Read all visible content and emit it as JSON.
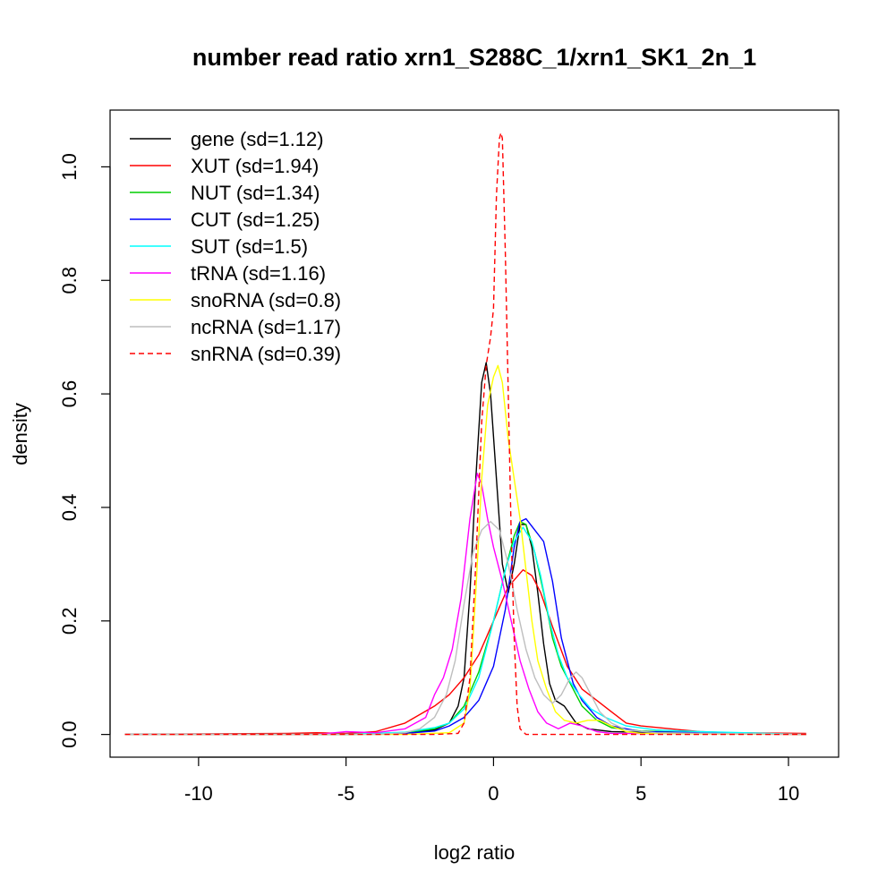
{
  "chart_data": {
    "type": "line",
    "title": "number read ratio xrn1_S288C_1/xrn1_SK1_2n_1",
    "xlabel": "log2 ratio",
    "ylabel": "density",
    "xlim": [
      -13,
      11.7
    ],
    "ylim": [
      -0.04,
      1.1
    ],
    "x_ticks": [
      -10,
      -5,
      0,
      5,
      10
    ],
    "x_tick_labels": [
      "-10",
      "-5",
      "0",
      "5",
      "10"
    ],
    "y_ticks": [
      0.0,
      0.2,
      0.4,
      0.6,
      0.8,
      1.0
    ],
    "y_tick_labels": [
      "0.0",
      "0.2",
      "0.4",
      "0.6",
      "0.8",
      "1.0"
    ],
    "grid": false,
    "legend_position": "top-left",
    "series": [
      {
        "name": "gene (sd=1.12)",
        "color": "#000000",
        "dash": false,
        "points": [
          [
            -12.5,
            0
          ],
          [
            -5,
            0
          ],
          [
            -3,
            0.002
          ],
          [
            -2,
            0.008
          ],
          [
            -1.5,
            0.02
          ],
          [
            -1.2,
            0.05
          ],
          [
            -1,
            0.1
          ],
          [
            -0.8,
            0.25
          ],
          [
            -0.6,
            0.45
          ],
          [
            -0.4,
            0.62
          ],
          [
            -0.25,
            0.655
          ],
          [
            -0.1,
            0.6
          ],
          [
            0.1,
            0.45
          ],
          [
            0.3,
            0.3
          ],
          [
            0.5,
            0.25
          ],
          [
            0.7,
            0.3
          ],
          [
            0.9,
            0.37
          ],
          [
            1.1,
            0.37
          ],
          [
            1.3,
            0.33
          ],
          [
            1.5,
            0.25
          ],
          [
            1.7,
            0.16
          ],
          [
            1.9,
            0.09
          ],
          [
            2.1,
            0.06
          ],
          [
            2.4,
            0.05
          ],
          [
            2.8,
            0.02
          ],
          [
            3.2,
            0.01
          ],
          [
            4,
            0.005
          ],
          [
            6,
            0.003
          ],
          [
            10.6,
            0
          ]
        ]
      },
      {
        "name": "XUT (sd=1.94)",
        "color": "#ff0000",
        "dash": false,
        "points": [
          [
            -12.5,
            0
          ],
          [
            -7,
            0.002
          ],
          [
            -6,
            0.003
          ],
          [
            -5,
            0.002
          ],
          [
            -4,
            0.005
          ],
          [
            -3,
            0.02
          ],
          [
            -2,
            0.05
          ],
          [
            -1.5,
            0.07
          ],
          [
            -1,
            0.1
          ],
          [
            -0.5,
            0.14
          ],
          [
            0,
            0.2
          ],
          [
            0.5,
            0.26
          ],
          [
            1,
            0.29
          ],
          [
            1.3,
            0.28
          ],
          [
            1.6,
            0.25
          ],
          [
            2,
            0.19
          ],
          [
            2.5,
            0.12
          ],
          [
            3,
            0.08
          ],
          [
            3.5,
            0.06
          ],
          [
            4,
            0.04
          ],
          [
            4.5,
            0.02
          ],
          [
            5,
            0.015
          ],
          [
            6,
            0.01
          ],
          [
            7,
            0.005
          ],
          [
            8,
            0.003
          ],
          [
            10.6,
            0.002
          ]
        ]
      },
      {
        "name": "NUT (sd=1.34)",
        "color": "#00cd00",
        "dash": false,
        "points": [
          [
            -12.5,
            0
          ],
          [
            -5,
            0
          ],
          [
            -3,
            0.003
          ],
          [
            -2,
            0.01
          ],
          [
            -1.5,
            0.02
          ],
          [
            -1,
            0.05
          ],
          [
            -0.5,
            0.11
          ],
          [
            0,
            0.2
          ],
          [
            0.4,
            0.29
          ],
          [
            0.7,
            0.35
          ],
          [
            0.9,
            0.375
          ],
          [
            1.1,
            0.37
          ],
          [
            1.4,
            0.32
          ],
          [
            1.7,
            0.25
          ],
          [
            2,
            0.17
          ],
          [
            2.3,
            0.12
          ],
          [
            2.7,
            0.08
          ],
          [
            3,
            0.05
          ],
          [
            3.5,
            0.025
          ],
          [
            4,
            0.012
          ],
          [
            5,
            0.006
          ],
          [
            7,
            0.003
          ],
          [
            10.6,
            0
          ]
        ]
      },
      {
        "name": "CUT (sd=1.25)",
        "color": "#0000ff",
        "dash": false,
        "points": [
          [
            -12.5,
            0
          ],
          [
            -5,
            0
          ],
          [
            -3,
            0.002
          ],
          [
            -2,
            0.006
          ],
          [
            -1.5,
            0.015
          ],
          [
            -1,
            0.03
          ],
          [
            -0.5,
            0.06
          ],
          [
            0,
            0.12
          ],
          [
            0.4,
            0.22
          ],
          [
            0.7,
            0.33
          ],
          [
            0.9,
            0.375
          ],
          [
            1.1,
            0.38
          ],
          [
            1.4,
            0.36
          ],
          [
            1.7,
            0.34
          ],
          [
            2,
            0.27
          ],
          [
            2.3,
            0.17
          ],
          [
            2.7,
            0.09
          ],
          [
            3,
            0.06
          ],
          [
            3.5,
            0.03
          ],
          [
            4,
            0.015
          ],
          [
            5,
            0.005
          ],
          [
            7,
            0.003
          ],
          [
            10.6,
            0
          ]
        ]
      },
      {
        "name": "SUT (sd=1.5)",
        "color": "#00ffff",
        "dash": false,
        "points": [
          [
            -12.5,
            0
          ],
          [
            -5,
            0
          ],
          [
            -3,
            0.004
          ],
          [
            -2,
            0.012
          ],
          [
            -1.5,
            0.02
          ],
          [
            -1,
            0.045
          ],
          [
            -0.5,
            0.1
          ],
          [
            0,
            0.2
          ],
          [
            0.4,
            0.29
          ],
          [
            0.7,
            0.34
          ],
          [
            1,
            0.365
          ],
          [
            1.3,
            0.34
          ],
          [
            1.6,
            0.28
          ],
          [
            1.9,
            0.2
          ],
          [
            2.2,
            0.14
          ],
          [
            2.5,
            0.1
          ],
          [
            2.9,
            0.07
          ],
          [
            3.3,
            0.045
          ],
          [
            3.8,
            0.03
          ],
          [
            4.5,
            0.015
          ],
          [
            5.5,
            0.008
          ],
          [
            7,
            0.005
          ],
          [
            8.5,
            0.003
          ],
          [
            10.6,
            0
          ]
        ]
      },
      {
        "name": "tRNA (sd=1.16)",
        "color": "#ff00ff",
        "dash": false,
        "points": [
          [
            -12.5,
            0
          ],
          [
            -6,
            0
          ],
          [
            -5,
            0.005
          ],
          [
            -4,
            0.003
          ],
          [
            -3,
            0.01
          ],
          [
            -2.3,
            0.03
          ],
          [
            -2,
            0.07
          ],
          [
            -1.7,
            0.1
          ],
          [
            -1.4,
            0.15
          ],
          [
            -1.1,
            0.24
          ],
          [
            -0.8,
            0.38
          ],
          [
            -0.55,
            0.46
          ],
          [
            -0.4,
            0.44
          ],
          [
            -0.2,
            0.38
          ],
          [
            0,
            0.33
          ],
          [
            0.3,
            0.27
          ],
          [
            0.6,
            0.2
          ],
          [
            0.9,
            0.13
          ],
          [
            1.2,
            0.08
          ],
          [
            1.5,
            0.04
          ],
          [
            1.8,
            0.02
          ],
          [
            2.2,
            0.01
          ],
          [
            2.6,
            0.02
          ],
          [
            3,
            0.015
          ],
          [
            3.5,
            0.005
          ],
          [
            4,
            0.002
          ],
          [
            10.6,
            0
          ]
        ]
      },
      {
        "name": "snoRNA (sd=0.8)",
        "color": "#ffff00",
        "dash": false,
        "points": [
          [
            -12.5,
            0
          ],
          [
            -3,
            0
          ],
          [
            -1.5,
            0.003
          ],
          [
            -1,
            0.02
          ],
          [
            -0.8,
            0.08
          ],
          [
            -0.6,
            0.25
          ],
          [
            -0.4,
            0.45
          ],
          [
            -0.2,
            0.58
          ],
          [
            0,
            0.63
          ],
          [
            0.15,
            0.65
          ],
          [
            0.3,
            0.62
          ],
          [
            0.5,
            0.52
          ],
          [
            0.7,
            0.45
          ],
          [
            0.9,
            0.38
          ],
          [
            1.1,
            0.29
          ],
          [
            1.3,
            0.2
          ],
          [
            1.5,
            0.13
          ],
          [
            1.8,
            0.08
          ],
          [
            2.1,
            0.04
          ],
          [
            2.4,
            0.025
          ],
          [
            2.8,
            0.02
          ],
          [
            3.2,
            0.025
          ],
          [
            3.6,
            0.025
          ],
          [
            4,
            0.015
          ],
          [
            4.5,
            0.005
          ],
          [
            5,
            0.002
          ],
          [
            10.6,
            0
          ]
        ]
      },
      {
        "name": "ncRNA (sd=1.17)",
        "color": "#bebebe",
        "dash": false,
        "points": [
          [
            -12.5,
            0
          ],
          [
            -4,
            0
          ],
          [
            -3,
            0.003
          ],
          [
            -2.5,
            0.01
          ],
          [
            -2,
            0.03
          ],
          [
            -1.6,
            0.07
          ],
          [
            -1.3,
            0.13
          ],
          [
            -1,
            0.23
          ],
          [
            -0.7,
            0.32
          ],
          [
            -0.4,
            0.36
          ],
          [
            -0.1,
            0.375
          ],
          [
            0.2,
            0.36
          ],
          [
            0.5,
            0.3
          ],
          [
            0.8,
            0.22
          ],
          [
            1.1,
            0.15
          ],
          [
            1.4,
            0.1
          ],
          [
            1.7,
            0.07
          ],
          [
            2,
            0.055
          ],
          [
            2.3,
            0.07
          ],
          [
            2.6,
            0.1
          ],
          [
            2.8,
            0.11
          ],
          [
            3,
            0.1
          ],
          [
            3.3,
            0.07
          ],
          [
            3.6,
            0.04
          ],
          [
            4,
            0.02
          ],
          [
            4.5,
            0.008
          ],
          [
            5.5,
            0.003
          ],
          [
            10.6,
            0
          ]
        ]
      },
      {
        "name": "snRNA (sd=0.39)",
        "color": "#ff0000",
        "dash": true,
        "points": [
          [
            -12.5,
            0
          ],
          [
            -2,
            0
          ],
          [
            -1.2,
            0.002
          ],
          [
            -1,
            0.02
          ],
          [
            -0.8,
            0.1
          ],
          [
            -0.6,
            0.3
          ],
          [
            -0.4,
            0.55
          ],
          [
            -0.25,
            0.65
          ],
          [
            -0.1,
            0.7
          ],
          [
            0,
            0.75
          ],
          [
            0.1,
            0.95
          ],
          [
            0.2,
            1.05
          ],
          [
            0.25,
            1.06
          ],
          [
            0.3,
            1.05
          ],
          [
            0.4,
            0.85
          ],
          [
            0.5,
            0.6
          ],
          [
            0.6,
            0.35
          ],
          [
            0.7,
            0.17
          ],
          [
            0.8,
            0.05
          ],
          [
            0.9,
            0.01
          ],
          [
            1.1,
            0
          ],
          [
            10.6,
            0
          ]
        ]
      }
    ]
  }
}
